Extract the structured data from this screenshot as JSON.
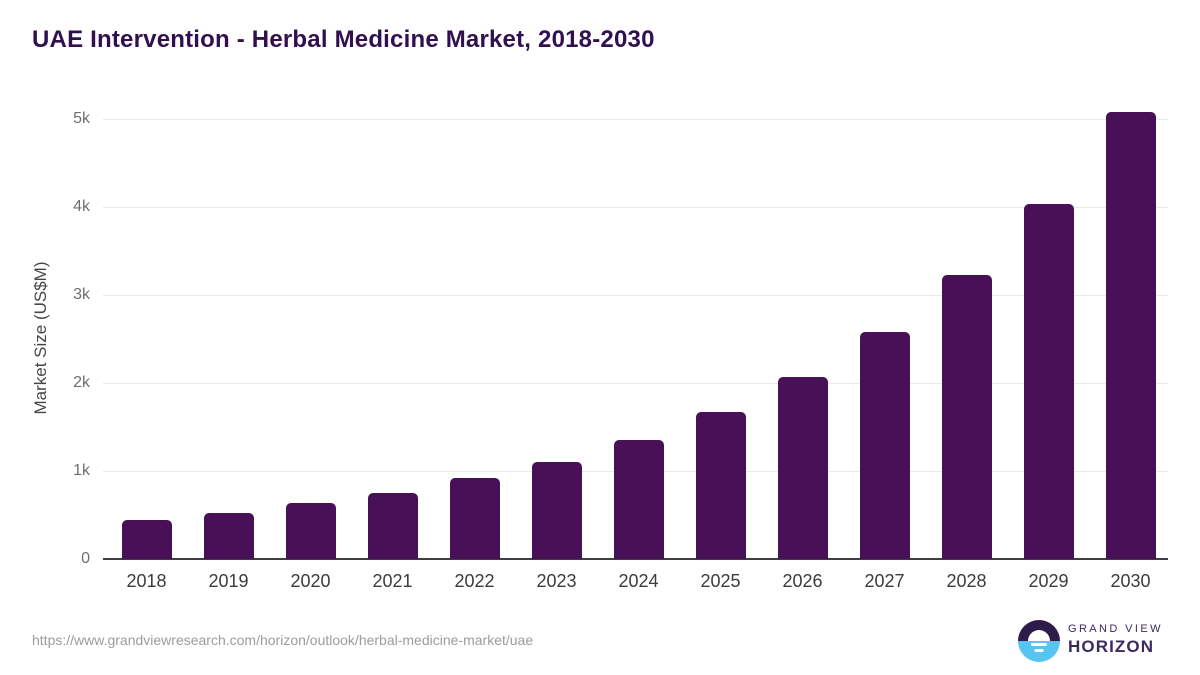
{
  "title": "UAE Intervention - Herbal Medicine Market, 2018-2030",
  "chart_data": {
    "type": "bar",
    "title": "UAE Intervention - Herbal Medicine Market, 2018-2030",
    "categories": [
      "2018",
      "2019",
      "2020",
      "2021",
      "2022",
      "2023",
      "2024",
      "2025",
      "2026",
      "2027",
      "2028",
      "2029",
      "2030"
    ],
    "values": [
      445,
      525,
      640,
      755,
      915,
      1105,
      1350,
      1665,
      2070,
      2575,
      3225,
      4035,
      5080
    ],
    "xlabel": "",
    "ylabel": "Market Size (US$M)",
    "ylim": [
      0,
      5000
    ],
    "yticks": [
      {
        "value": 0,
        "label": "0"
      },
      {
        "value": 1000,
        "label": "1k"
      },
      {
        "value": 2000,
        "label": "2k"
      },
      {
        "value": 3000,
        "label": "3k"
      },
      {
        "value": 4000,
        "label": "4k"
      },
      {
        "value": 5000,
        "label": "5k"
      }
    ],
    "grid": true,
    "legend": "none",
    "bar_color": "#481157"
  },
  "footer": {
    "source_url": "https://www.grandviewresearch.com/horizon/outlook/herbal-medicine-market/uae",
    "logo": {
      "line1": "GRAND VIEW",
      "line2": "HORIZON"
    }
  },
  "colors": {
    "title": "#321050",
    "bar": "#481157",
    "gridline": "#e9e9e9",
    "axis_line": "#3f3f3f",
    "tick_label": "#6f6f6f",
    "x_label": "#3c3c3c",
    "url_text": "#9c9c9c",
    "logo_sky": "#2d1b4a",
    "logo_sea": "#58c4f0",
    "logo_text": "#3b2a5e"
  }
}
